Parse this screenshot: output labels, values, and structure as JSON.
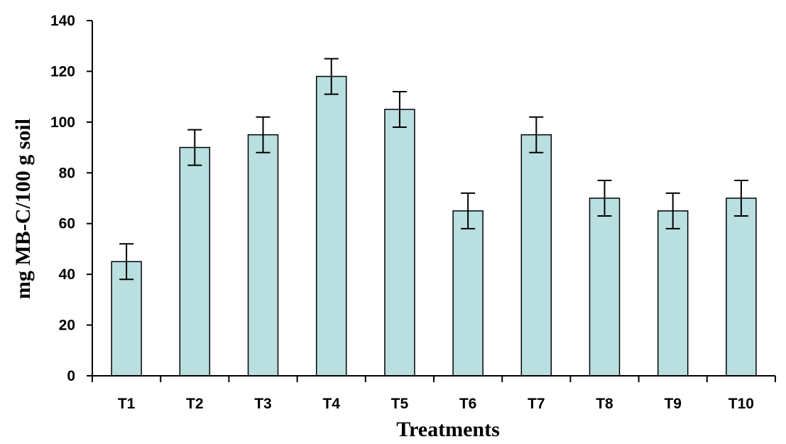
{
  "chart_data": {
    "type": "bar",
    "title": "",
    "xlabel": "Treatments",
    "ylabel": "mg MB-C/100 g soil",
    "categories": [
      "T1",
      "T2",
      "T3",
      "T4",
      "T5",
      "T6",
      "T7",
      "T8",
      "T9",
      "T10"
    ],
    "values": [
      45,
      90,
      95,
      118,
      105,
      65,
      95,
      70,
      65,
      70
    ],
    "error": [
      7,
      7,
      7,
      7,
      7,
      7,
      7,
      7,
      7,
      7
    ],
    "ylim": [
      0,
      140
    ],
    "yticks": [
      "0",
      "20",
      "40",
      "60",
      "80",
      "100",
      "120",
      "140"
    ],
    "grid": false,
    "colors": {
      "bar_fill": "#b9dfe0",
      "bar_stroke": "#000000",
      "error_bar": "#000000",
      "axis": "#000000"
    }
  }
}
